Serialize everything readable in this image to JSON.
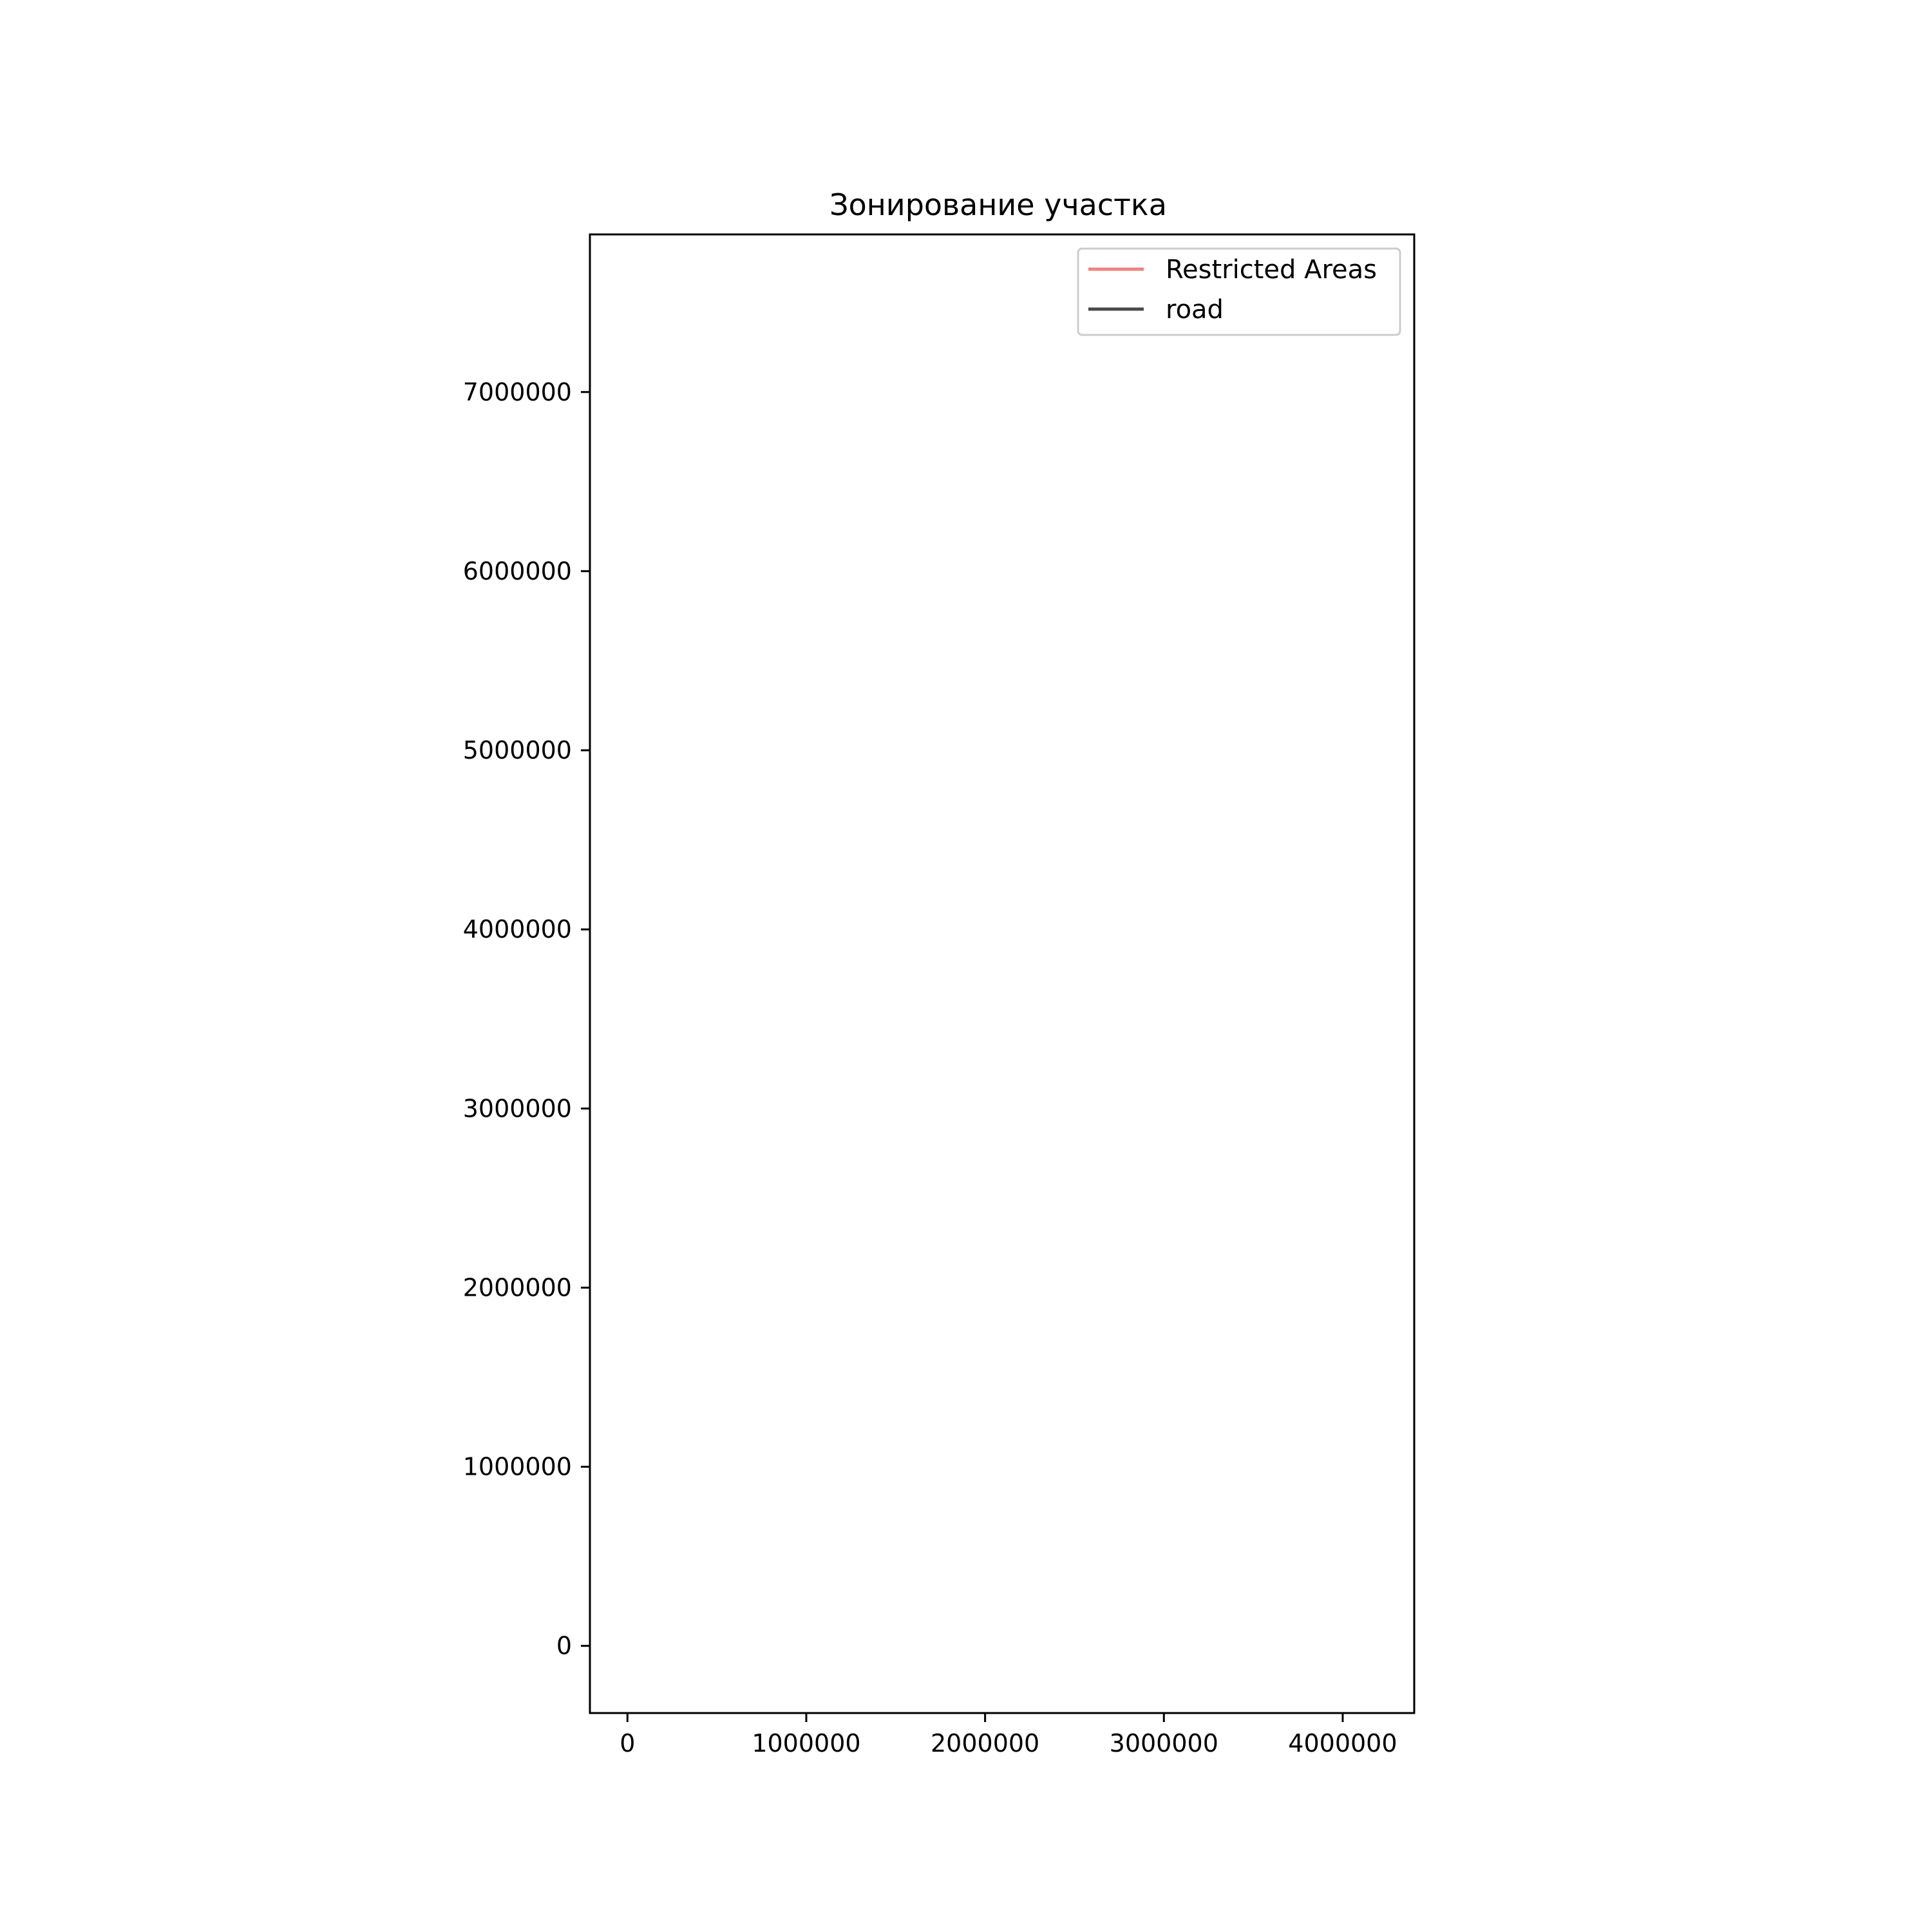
{
  "chart_data": {
    "type": "line",
    "title": "Зонирование участка",
    "xlabel": "",
    "ylabel": "",
    "xlim": [
      -210000,
      4400000
    ],
    "ylim": [
      -375000,
      7880000
    ],
    "x_ticks": [
      0,
      1000000,
      2000000,
      3000000,
      4000000
    ],
    "x_tick_labels": [
      "0",
      "1000000",
      "2000000",
      "3000000",
      "4000000"
    ],
    "y_ticks": [
      0,
      1000000,
      2000000,
      3000000,
      4000000,
      5000000,
      6000000,
      7000000
    ],
    "y_tick_labels": [
      "0",
      "1000000",
      "2000000",
      "3000000",
      "4000000",
      "5000000",
      "6000000",
      "7000000"
    ],
    "grid": false,
    "legend_position": "upper right",
    "series": [
      {
        "name": "Restricted Areas",
        "color": "#f08080",
        "points": []
      },
      {
        "name": "road",
        "color": "#4a4a4a",
        "points": []
      }
    ]
  }
}
